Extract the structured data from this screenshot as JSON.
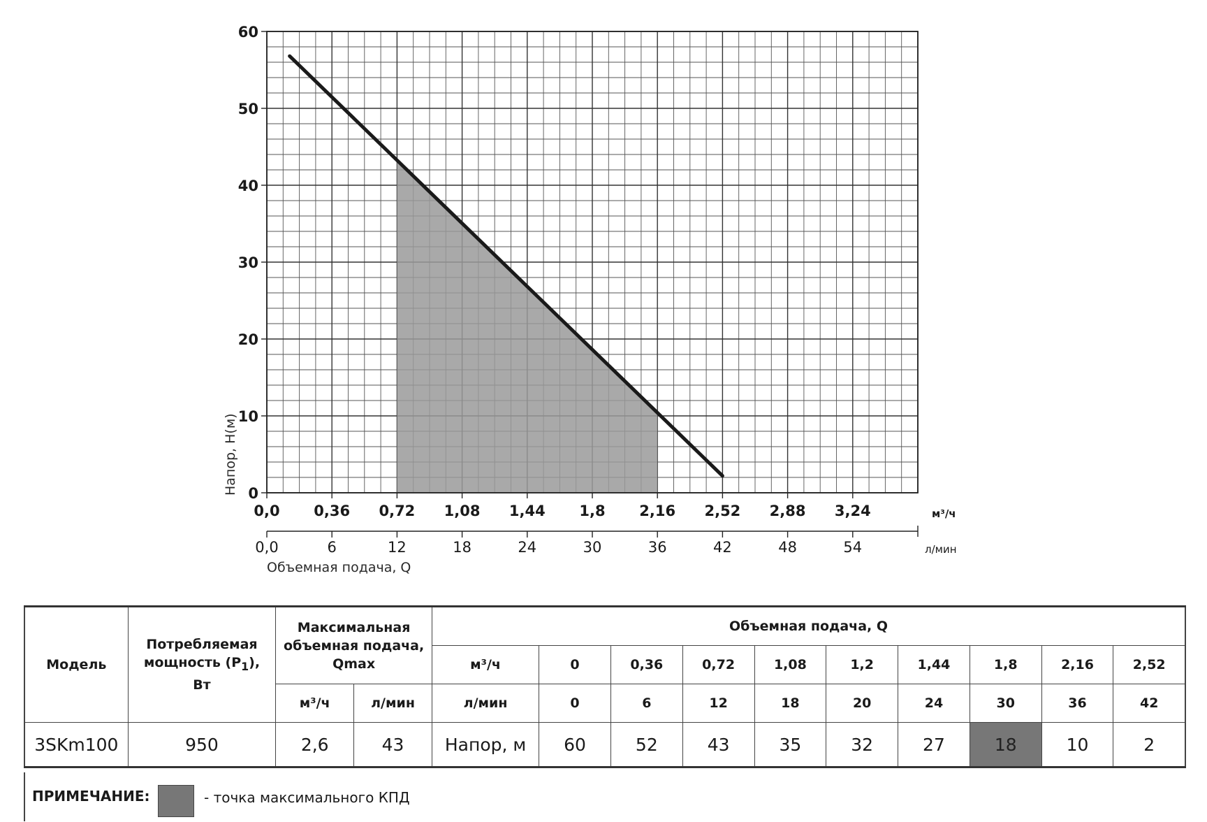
{
  "chart_data": {
    "type": "line",
    "x_ticks_primary": [
      "0,0",
      "0,36",
      "0,72",
      "1,08",
      "1,44",
      "1,8",
      "2,16",
      "2,52",
      "2,88",
      "3,24"
    ],
    "x_unit_primary": "м³/ч",
    "x_ticks_secondary": [
      "0,0",
      "6",
      "12",
      "18",
      "24",
      "30",
      "36",
      "42",
      "48",
      "54"
    ],
    "x_unit_secondary": "л/мин",
    "xlabel": "Объемная подача, Q",
    "y_ticks": [
      "60",
      "50",
      "40",
      "30",
      "20",
      "10",
      "0"
    ],
    "ylabel": "Напор, Н(м)",
    "xlim": [
      0,
      60
    ],
    "ylim": [
      0,
      60
    ],
    "grid": true,
    "series": [
      {
        "x": [
          2.1,
          42
        ],
        "y": [
          56.8,
          2.2
        ],
        "color": "#1a1a1a"
      }
    ],
    "shaded_region": {
      "x_from": 12,
      "x_to": 36,
      "color": "#9a9a9a"
    }
  },
  "table": {
    "headers": {
      "model": "Модель",
      "power_line1": "Потребляемая",
      "power_line2": "мощность (Р",
      "power_sub": "1",
      "power_line2_end": "),",
      "power_line3": "Вт",
      "qmax_line1": "Максимальная",
      "qmax_line2": "объемная подача,",
      "qmax_line3": "Qmax",
      "qmax_unit_m3": "м³/ч",
      "qmax_unit_lmin": "л/мин",
      "flow_title": "Объемная подача, Q",
      "flow_unit_m3": "м³/ч",
      "flow_unit_lmin": "л/мин"
    },
    "flow_m3h": [
      "0",
      "0,36",
      "0,72",
      "1,08",
      "1,2",
      "1,44",
      "1,8",
      "2,16",
      "2,52"
    ],
    "flow_lmin": [
      "0",
      "6",
      "12",
      "18",
      "20",
      "24",
      "30",
      "36",
      "42"
    ],
    "row": {
      "model": "3SKm100",
      "power": "950",
      "qmax_m3h": "2,6",
      "qmax_lmin": "43",
      "head_label": "Напор, м",
      "heads": [
        "60",
        "52",
        "43",
        "35",
        "32",
        "27",
        "18",
        "10",
        "2"
      ]
    },
    "highlight_index": 6,
    "highlight_color": "#777777"
  },
  "note": {
    "label": "ПРИМЕЧАНИЕ:",
    "text": "- точка максимального КПД"
  }
}
